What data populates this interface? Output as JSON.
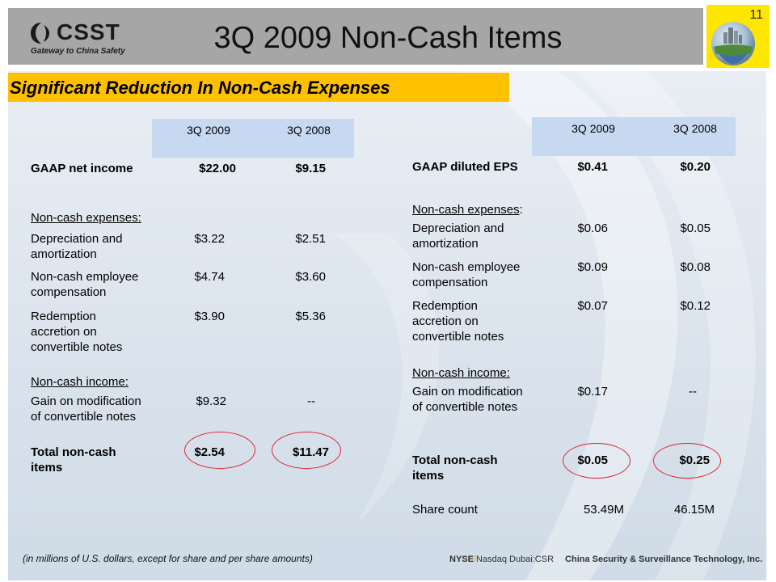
{
  "header": {
    "logo_text": "CSST",
    "logo_tagline": "Gateway to China Safety",
    "title": "3Q 2009 Non-Cash Items",
    "page_number": "11"
  },
  "subtitle": "Significant Reduction In Non-Cash Expenses",
  "left_table": {
    "col1": "3Q 2009",
    "col2": "3Q 2008",
    "gaap": {
      "label": "GAAP net income",
      "v1": "$22.00",
      "v2": "$9.15"
    },
    "expenses_heading": "Non-cash expenses:",
    "depreciation": {
      "label_line1": "Depreciation and",
      "label_line2": "amortization",
      "v1": "$3.22",
      "v2": "$2.51"
    },
    "employee": {
      "label_line1": "Non-cash employee",
      "label_line2": "compensation",
      "v1": "$4.74",
      "v2": "$3.60"
    },
    "redemption": {
      "label_line1": "Redemption",
      "label_line2": "accretion on",
      "label_line3": "convertible notes",
      "v1": "$3.90",
      "v2": "$5.36"
    },
    "income_heading": "Non-cash income:",
    "gain": {
      "label_line1": "Gain on modification",
      "label_line2": "of convertible notes",
      "v1": "$9.32",
      "v2": "--"
    },
    "total": {
      "label_line1": "Total non-cash",
      "label_line2": "items",
      "v1": "$2.54",
      "v2": "$11.47"
    }
  },
  "right_table": {
    "col1": "3Q 2009",
    "col2": "3Q 2008",
    "gaap": {
      "label": "GAAP diluted EPS",
      "v1": "$0.41",
      "v2": "$0.20"
    },
    "expenses_heading": "Non-cash expenses",
    "expenses_colon": ":",
    "depreciation": {
      "label_line1": "Depreciation and",
      "label_line2": "amortization",
      "v1": "$0.06",
      "v2": "$0.05"
    },
    "employee": {
      "label_line1": "Non-cash employee",
      "label_line2": "compensation",
      "v1": "$0.09",
      "v2": "$0.08"
    },
    "redemption": {
      "label_line1": "Redemption",
      "label_line2": "accretion on",
      "label_line3": "convertible notes",
      "v1": "$0.07",
      "v2": "$0.12"
    },
    "income_heading": "Non-cash income:",
    "gain": {
      "label_line1": "Gain on modification",
      "label_line2": "of convertible notes",
      "v1": "$0.17",
      "v2": "--"
    },
    "total": {
      "label_line1": "Total non-cash",
      "label_line2": "items",
      "v1": "$0.05",
      "v2": "$0.25"
    },
    "share": {
      "label": "Share count",
      "v1": "53.49M",
      "v2": "46.15M"
    }
  },
  "footer": {
    "note": "(in millions of U.S. dollars, except for share and per share amounts)",
    "exchange_nyse": "NYSE",
    "exchange_slash": "/",
    "exchange_rest": "Nasdaq Dubai:CSR",
    "company": "China Security & Surveillance Technology, Inc."
  },
  "colors": {
    "header_bar": "#a6a6a6",
    "subtitle_bg": "#ffc000",
    "badge_bg": "#ffe600",
    "table_header_bg": "#c6d9f1",
    "highlight_circle": "#e0262b"
  }
}
